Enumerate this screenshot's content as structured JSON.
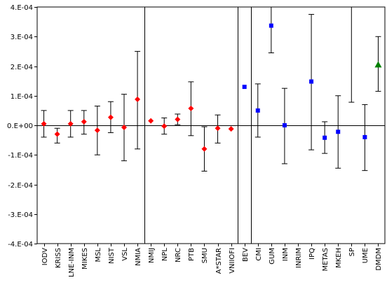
{
  "chart_data": {
    "type": "scatter",
    "title": "",
    "xlabel": "",
    "ylabel": "",
    "ylim": [
      -0.0004,
      0.0004
    ],
    "y_ticks": [
      {
        "value": 0.0004,
        "label": "4.E-04"
      },
      {
        "value": 0.0003,
        "label": "3.E-04"
      },
      {
        "value": 0.0002,
        "label": "2.E-04"
      },
      {
        "value": 0.0001,
        "label": "1.E-04"
      },
      {
        "value": 0.0,
        "label": "0.E+00"
      },
      {
        "value": -0.0001,
        "label": "-1.E-04"
      },
      {
        "value": -0.0002,
        "label": "-2.E-04"
      },
      {
        "value": -0.0003,
        "label": "-3.E-04"
      },
      {
        "value": -0.0004,
        "label": "-4.E-04"
      }
    ],
    "grid": "horizontal-dashed",
    "legend": "none",
    "categories": [
      "IODV",
      "KRISS",
      "LNE-INM",
      "MIKES",
      "MSL",
      "NIST",
      "VSL",
      "NMIA",
      "NMIJ",
      "NPL",
      "NRC",
      "PTB",
      "SMU",
      "A*STAR",
      "VNIIOFI",
      "BEV",
      "CMI",
      "GUM",
      "INM",
      "INRIM",
      "IPQ",
      "METAS",
      "MKEH",
      "SP",
      "UME",
      "DMDM"
    ],
    "group_separators_after": [
      "NMIA",
      "VNIIOFI",
      "BEV"
    ],
    "series": [
      {
        "marker": "diamond",
        "color": "#ff0000",
        "points": [
          {
            "category": "IODV",
            "value": 5e-06,
            "low": -4e-05,
            "high": 5e-05
          },
          {
            "category": "KRISS",
            "value": -3e-05,
            "low": -6e-05,
            "high": -1e-05
          },
          {
            "category": "LNE-INM",
            "value": 5e-06,
            "low": -4e-05,
            "high": 5e-05
          },
          {
            "category": "MIKES",
            "value": 1.2e-05,
            "low": -3e-05,
            "high": 5e-05
          },
          {
            "category": "MSL",
            "value": -1.7e-05,
            "low": -0.0001,
            "high": 6.5e-05
          },
          {
            "category": "NIST",
            "value": 2.7e-05,
            "low": -2.5e-05,
            "high": 8e-05
          },
          {
            "category": "VSL",
            "value": -7e-06,
            "low": -0.00012,
            "high": 0.000105
          },
          {
            "category": "NMIA",
            "value": 8.8e-05,
            "low": -8e-05,
            "high": 0.00025
          },
          {
            "category": "NMIJ",
            "value": 1.5e-05
          },
          {
            "category": "NPL",
            "value": -3e-06,
            "low": -3e-05,
            "high": 2.5e-05
          },
          {
            "category": "NRC",
            "value": 2e-05,
            "low": 2e-06,
            "high": 3.8e-05
          },
          {
            "category": "PTB",
            "value": 5.7e-05,
            "low": -3.5e-05,
            "high": 0.000147
          },
          {
            "category": "SMU",
            "value": -8e-05,
            "low": -0.000155,
            "high": -5e-06
          },
          {
            "category": "A*STAR",
            "value": -1e-05,
            "low": -6e-05,
            "high": 3.5e-05
          },
          {
            "category": "VNIIOFI",
            "value": -1.2e-05
          }
        ]
      },
      {
        "marker": "square",
        "color": "#0000ff",
        "points": [
          {
            "category": "BEV",
            "value": 0.00013
          },
          {
            "category": "CMI",
            "value": 5e-05,
            "low": -4e-05,
            "high": 0.00014
          },
          {
            "category": "GUM",
            "value": 0.000337,
            "low": 0.000245,
            "high": 0.0004
          },
          {
            "category": "INM",
            "value": 0.0,
            "low": -0.00013,
            "high": 0.000125
          },
          {
            "category": "IPQ",
            "value": 0.000148,
            "low": -8.3e-05,
            "high": 0.000375
          },
          {
            "category": "METAS",
            "value": -4.2e-05,
            "low": -9.5e-05,
            "high": 1.2e-05
          },
          {
            "category": "MKEH",
            "value": -2.2e-05,
            "low": -0.000145,
            "high": 0.0001
          },
          {
            "category": "SP",
            "low": 7.8e-05,
            "high": 0.0004
          },
          {
            "category": "UME",
            "value": -4e-05,
            "low": -0.000153,
            "high": 7e-05
          }
        ]
      },
      {
        "marker": "triangle",
        "color": "#008000",
        "points": [
          {
            "category": "DMDM",
            "value": 0.000205,
            "low": 0.000115,
            "high": 0.0003
          }
        ]
      }
    ]
  }
}
